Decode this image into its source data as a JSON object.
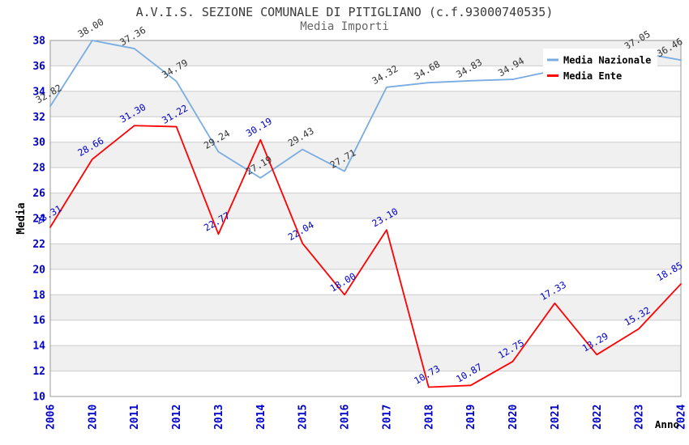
{
  "title": "A.V.I.S. SEZIONE COMUNALE DI PITIGLIANO (c.f.93000740535)",
  "subtitle": "Media Importi",
  "chart_data": {
    "type": "line",
    "x": [
      "2006",
      "2010",
      "2011",
      "2012",
      "2013",
      "2014",
      "2015",
      "2016",
      "2017",
      "2018",
      "2019",
      "2020",
      "2021",
      "2022",
      "2023",
      "2024"
    ],
    "xlabel": "Anno",
    "ylabel": "Media",
    "ylim": [
      10,
      38
    ],
    "ytick_step": 2,
    "grid": "horizontal-gridlines-with-alternating-bands",
    "legend_position": "top-right",
    "series": [
      {
        "name": "Media Nazionale",
        "color": "#79ace2",
        "label_color": "#333333",
        "values": [
          32.82,
          38.0,
          37.36,
          34.79,
          29.24,
          27.19,
          29.43,
          27.71,
          34.32,
          34.68,
          34.83,
          34.94,
          35.64,
          36.35,
          37.05,
          36.46
        ],
        "labels": [
          "32.82",
          "38.00",
          "37.36",
          "34.79",
          "29.24",
          "27.19",
          "29.43",
          "27.71",
          "34.32",
          "34.68",
          "34.83",
          "34.94",
          "",
          "",
          "37.05",
          "36.46"
        ],
        "occluded_by_legend": [
          "2021",
          "2022"
        ]
      },
      {
        "name": "Media Ente",
        "color": "#ff0000",
        "label_color": "#0000cc",
        "values": [
          23.31,
          28.66,
          31.3,
          31.22,
          22.77,
          30.19,
          22.04,
          18.0,
          23.1,
          10.73,
          10.87,
          12.75,
          17.33,
          13.29,
          15.32,
          18.85
        ],
        "labels": [
          "23.31",
          "28.66",
          "31.30",
          "31.22",
          "22.77",
          "30.19",
          "22.04",
          "18.00",
          "23.10",
          "10.73",
          "10.87",
          "12.75",
          "17.33",
          "13.29",
          "15.32",
          "18.85"
        ]
      }
    ]
  },
  "colors": {
    "background": "#ffffff",
    "band": "#f0f0f0",
    "grid": "#cccccc",
    "border": "#999999",
    "tick_label": "#0000cc",
    "axis_title": "#000000",
    "legend_bg": "#ffffff",
    "legend_text": "#000000",
    "title": "#3a3a3a",
    "subtitle": "#666666"
  }
}
